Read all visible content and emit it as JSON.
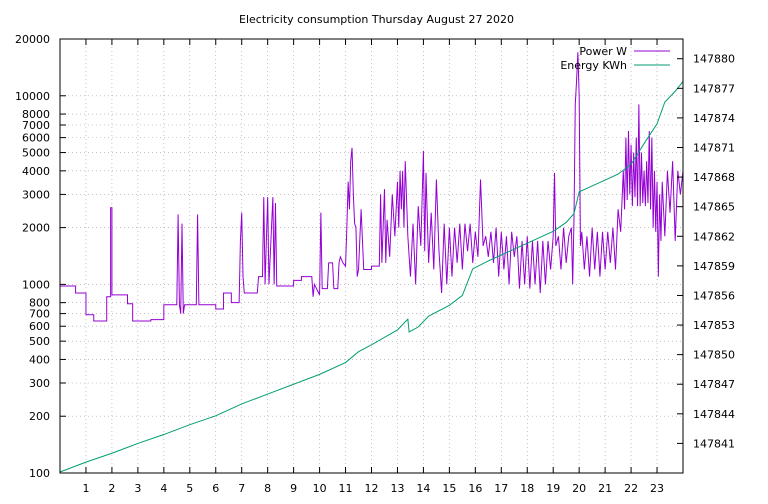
{
  "chart_data": {
    "type": "line",
    "title": "Electricity consumption Thursday August 27 2020",
    "xlim": [
      0,
      24
    ],
    "x_ticks": [
      1,
      2,
      3,
      4,
      5,
      6,
      7,
      8,
      9,
      10,
      11,
      12,
      13,
      14,
      15,
      16,
      17,
      18,
      19,
      20,
      21,
      22,
      23
    ],
    "y_left": {
      "scale": "log",
      "ylim": [
        100,
        20000
      ],
      "ticks": [
        "100",
        "200",
        "300",
        "400",
        "500",
        "600",
        "700",
        "800",
        "1000",
        "2000",
        "3000",
        "4000",
        "5000",
        "6000",
        "7000",
        "8000",
        "10000",
        "20000"
      ]
    },
    "y_right": {
      "scale": "linear",
      "ylim": [
        147838,
        147882
      ],
      "ticks": [
        "147841",
        "147844",
        "147847",
        "147850",
        "147853",
        "147856",
        "147859",
        "147862",
        "147865",
        "147868",
        "147871",
        "147874",
        "147877",
        "147880"
      ]
    },
    "grid": true,
    "legend_position": "top-right",
    "series": [
      {
        "name": "Power W",
        "axis": "left",
        "color": "#9400d3",
        "points": [
          [
            0,
            980
          ],
          [
            0.6,
            980
          ],
          [
            0.6,
            900
          ],
          [
            1.0,
            900
          ],
          [
            1.0,
            690
          ],
          [
            1.3,
            690
          ],
          [
            1.3,
            640
          ],
          [
            1.8,
            640
          ],
          [
            1.8,
            860
          ],
          [
            1.95,
            860
          ],
          [
            1.95,
            2550
          ],
          [
            2.0,
            2550
          ],
          [
            2.0,
            880
          ],
          [
            2.6,
            880
          ],
          [
            2.6,
            790
          ],
          [
            2.8,
            790
          ],
          [
            2.8,
            640
          ],
          [
            3.5,
            640
          ],
          [
            3.5,
            650
          ],
          [
            4.0,
            650
          ],
          [
            4.0,
            780
          ],
          [
            4.5,
            780
          ],
          [
            4.55,
            2350
          ],
          [
            4.6,
            780
          ],
          [
            4.65,
            700
          ],
          [
            4.7,
            2100
          ],
          [
            4.75,
            700
          ],
          [
            4.8,
            780
          ],
          [
            5.25,
            780
          ],
          [
            5.3,
            2350
          ],
          [
            5.35,
            780
          ],
          [
            6.0,
            780
          ],
          [
            6.0,
            740
          ],
          [
            6.3,
            740
          ],
          [
            6.3,
            900
          ],
          [
            6.6,
            900
          ],
          [
            6.6,
            800
          ],
          [
            6.9,
            800
          ],
          [
            6.95,
            1700
          ],
          [
            7.0,
            2400
          ],
          [
            7.05,
            1100
          ],
          [
            7.1,
            900
          ],
          [
            7.6,
            900
          ],
          [
            7.65,
            1100
          ],
          [
            7.8,
            1100
          ],
          [
            7.85,
            2900
          ],
          [
            7.9,
            1000
          ],
          [
            8.0,
            2900
          ],
          [
            8.05,
            1000
          ],
          [
            8.2,
            2900
          ],
          [
            8.25,
            1000
          ],
          [
            8.3,
            2700
          ],
          [
            8.35,
            980
          ],
          [
            9.0,
            980
          ],
          [
            9.0,
            1050
          ],
          [
            9.3,
            1050
          ],
          [
            9.3,
            1100
          ],
          [
            9.7,
            1100
          ],
          [
            9.75,
            860
          ],
          [
            9.8,
            1000
          ],
          [
            10.0,
            880
          ],
          [
            10.05,
            2400
          ],
          [
            10.1,
            950
          ],
          [
            10.3,
            950
          ],
          [
            10.35,
            1300
          ],
          [
            10.5,
            1300
          ],
          [
            10.55,
            950
          ],
          [
            10.7,
            950
          ],
          [
            10.75,
            1300
          ],
          [
            10.8,
            1400
          ],
          [
            10.9,
            1300
          ],
          [
            11.0,
            1250
          ],
          [
            11.05,
            2000
          ],
          [
            11.1,
            3500
          ],
          [
            11.15,
            2500
          ],
          [
            11.2,
            4500
          ],
          [
            11.25,
            5300
          ],
          [
            11.3,
            3000
          ],
          [
            11.35,
            2100
          ],
          [
            11.4,
            2000
          ],
          [
            11.45,
            1100
          ],
          [
            11.5,
            1200
          ],
          [
            11.6,
            2500
          ],
          [
            11.7,
            1200
          ],
          [
            12.0,
            1200
          ],
          [
            12.0,
            1250
          ],
          [
            12.3,
            1250
          ],
          [
            12.35,
            3000
          ],
          [
            12.4,
            1300
          ],
          [
            12.5,
            3200
          ],
          [
            12.55,
            1300
          ],
          [
            12.6,
            2200
          ],
          [
            12.7,
            1400
          ],
          [
            12.8,
            3000
          ],
          [
            12.9,
            1800
          ],
          [
            13.0,
            3500
          ],
          [
            13.05,
            2000
          ],
          [
            13.1,
            4000
          ],
          [
            13.15,
            2500
          ],
          [
            13.2,
            4000
          ],
          [
            13.25,
            2000
          ],
          [
            13.3,
            4500
          ],
          [
            13.4,
            1800
          ],
          [
            13.5,
            1100
          ],
          [
            13.6,
            2100
          ],
          [
            13.7,
            1000
          ],
          [
            13.8,
            2600
          ],
          [
            13.9,
            1600
          ],
          [
            14.0,
            5100
          ],
          [
            14.05,
            1500
          ],
          [
            14.1,
            3900
          ],
          [
            14.2,
            1300
          ],
          [
            14.3,
            2400
          ],
          [
            14.4,
            1200
          ],
          [
            14.5,
            3600
          ],
          [
            14.6,
            1500
          ],
          [
            14.7,
            900
          ],
          [
            14.8,
            2100
          ],
          [
            14.9,
            1000
          ],
          [
            15.0,
            2000
          ],
          [
            15.1,
            1100
          ],
          [
            15.2,
            2000
          ],
          [
            15.3,
            1300
          ],
          [
            15.4,
            2100
          ],
          [
            15.5,
            1200
          ],
          [
            15.6,
            2100
          ],
          [
            15.7,
            1500
          ],
          [
            15.8,
            2100
          ],
          [
            15.9,
            1300
          ],
          [
            16.0,
            1900
          ],
          [
            16.1,
            1400
          ],
          [
            16.2,
            3600
          ],
          [
            16.3,
            1600
          ],
          [
            16.4,
            1800
          ],
          [
            16.5,
            1400
          ],
          [
            16.6,
            1900
          ],
          [
            16.7,
            1300
          ],
          [
            16.8,
            2000
          ],
          [
            16.9,
            1100
          ],
          [
            17.0,
            1900
          ],
          [
            17.1,
            1200
          ],
          [
            17.2,
            1800
          ],
          [
            17.3,
            1000
          ],
          [
            17.4,
            1900
          ],
          [
            17.5,
            1400
          ],
          [
            17.6,
            1800
          ],
          [
            17.7,
            950
          ],
          [
            17.8,
            1700
          ],
          [
            17.9,
            1000
          ],
          [
            18.0,
            1800
          ],
          [
            18.1,
            950
          ],
          [
            18.2,
            1700
          ],
          [
            18.3,
            1000
          ],
          [
            18.4,
            1700
          ],
          [
            18.5,
            900
          ],
          [
            18.6,
            1700
          ],
          [
            18.7,
            1000
          ],
          [
            18.8,
            1700
          ],
          [
            18.9,
            1200
          ],
          [
            19.0,
            1800
          ],
          [
            19.05,
            3900
          ],
          [
            19.1,
            1600
          ],
          [
            19.2,
            1800
          ],
          [
            19.3,
            1200
          ],
          [
            19.4,
            2000
          ],
          [
            19.5,
            1300
          ],
          [
            19.6,
            1800
          ],
          [
            19.7,
            2000
          ],
          [
            19.75,
            1000
          ],
          [
            19.8,
            2200
          ],
          [
            19.85,
            9000
          ],
          [
            19.9,
            12000
          ],
          [
            19.95,
            17000
          ],
          [
            20.0,
            10000
          ],
          [
            20.05,
            1600
          ],
          [
            20.1,
            1900
          ],
          [
            20.2,
            1200
          ],
          [
            20.3,
            1800
          ],
          [
            20.4,
            1100
          ],
          [
            20.5,
            2000
          ],
          [
            20.6,
            1200
          ],
          [
            20.7,
            1900
          ],
          [
            20.8,
            1100
          ],
          [
            20.9,
            1900
          ],
          [
            21.0,
            1200
          ],
          [
            21.1,
            1900
          ],
          [
            21.2,
            1300
          ],
          [
            21.3,
            2000
          ],
          [
            21.4,
            1200
          ],
          [
            21.5,
            2500
          ],
          [
            21.6,
            1900
          ],
          [
            21.7,
            4000
          ],
          [
            21.75,
            2500
          ],
          [
            21.8,
            6000
          ],
          [
            21.85,
            2800
          ],
          [
            21.9,
            6500
          ],
          [
            21.95,
            3000
          ],
          [
            22.0,
            5500
          ],
          [
            22.05,
            2600
          ],
          [
            22.1,
            5000
          ],
          [
            22.15,
            2900
          ],
          [
            22.2,
            6000
          ],
          [
            22.25,
            2600
          ],
          [
            22.3,
            9000
          ],
          [
            22.35,
            2600
          ],
          [
            22.4,
            5000
          ],
          [
            22.45,
            2700
          ],
          [
            22.5,
            4000
          ],
          [
            22.55,
            2600
          ],
          [
            22.6,
            4500
          ],
          [
            22.65,
            2700
          ],
          [
            22.7,
            6500
          ],
          [
            22.75,
            2500
          ],
          [
            22.8,
            6000
          ],
          [
            22.85,
            2000
          ],
          [
            22.9,
            4000
          ],
          [
            22.95,
            1900
          ],
          [
            23.0,
            3500
          ],
          [
            23.05,
            1100
          ],
          [
            23.1,
            3000
          ],
          [
            23.15,
            1700
          ],
          [
            23.2,
            3500
          ],
          [
            23.3,
            1800
          ],
          [
            23.4,
            4000
          ],
          [
            23.5,
            2400
          ],
          [
            23.6,
            4500
          ],
          [
            23.7,
            1700
          ],
          [
            23.8,
            4000
          ],
          [
            23.9,
            3000
          ],
          [
            24.0,
            4000
          ]
        ]
      },
      {
        "name": "Energy KWh",
        "axis": "right",
        "color": "#009e73",
        "points": [
          [
            0,
            147838.1
          ],
          [
            1,
            147839.1
          ],
          [
            2,
            147840.0
          ],
          [
            3,
            147841.0
          ],
          [
            4,
            147841.9
          ],
          [
            5,
            147842.9
          ],
          [
            6,
            147843.8
          ],
          [
            7,
            147845.0
          ],
          [
            8,
            147846.0
          ],
          [
            9,
            147847.0
          ],
          [
            10,
            147848.0
          ],
          [
            11,
            147849.2
          ],
          [
            11.5,
            147850.3
          ],
          [
            12,
            147851.0
          ],
          [
            13,
            147852.5
          ],
          [
            13.4,
            147853.6
          ],
          [
            13.45,
            147852.3
          ],
          [
            13.8,
            147852.8
          ],
          [
            14.2,
            147853.9
          ],
          [
            15,
            147855.0
          ],
          [
            15.5,
            147856.0
          ],
          [
            15.9,
            147858.7
          ],
          [
            16.5,
            147859.5
          ],
          [
            17,
            147860.1
          ],
          [
            18,
            147861.3
          ],
          [
            19,
            147862.5
          ],
          [
            19.5,
            147863.4
          ],
          [
            19.8,
            147864.3
          ],
          [
            20.0,
            147866.5
          ],
          [
            20.5,
            147867.1
          ],
          [
            21,
            147867.7
          ],
          [
            21.5,
            147868.3
          ],
          [
            22.0,
            147869.3
          ],
          [
            22.5,
            147871.4
          ],
          [
            23.0,
            147873.4
          ],
          [
            23.3,
            147875.6
          ],
          [
            23.7,
            147876.7
          ],
          [
            24.0,
            147877.7
          ]
        ]
      }
    ]
  }
}
